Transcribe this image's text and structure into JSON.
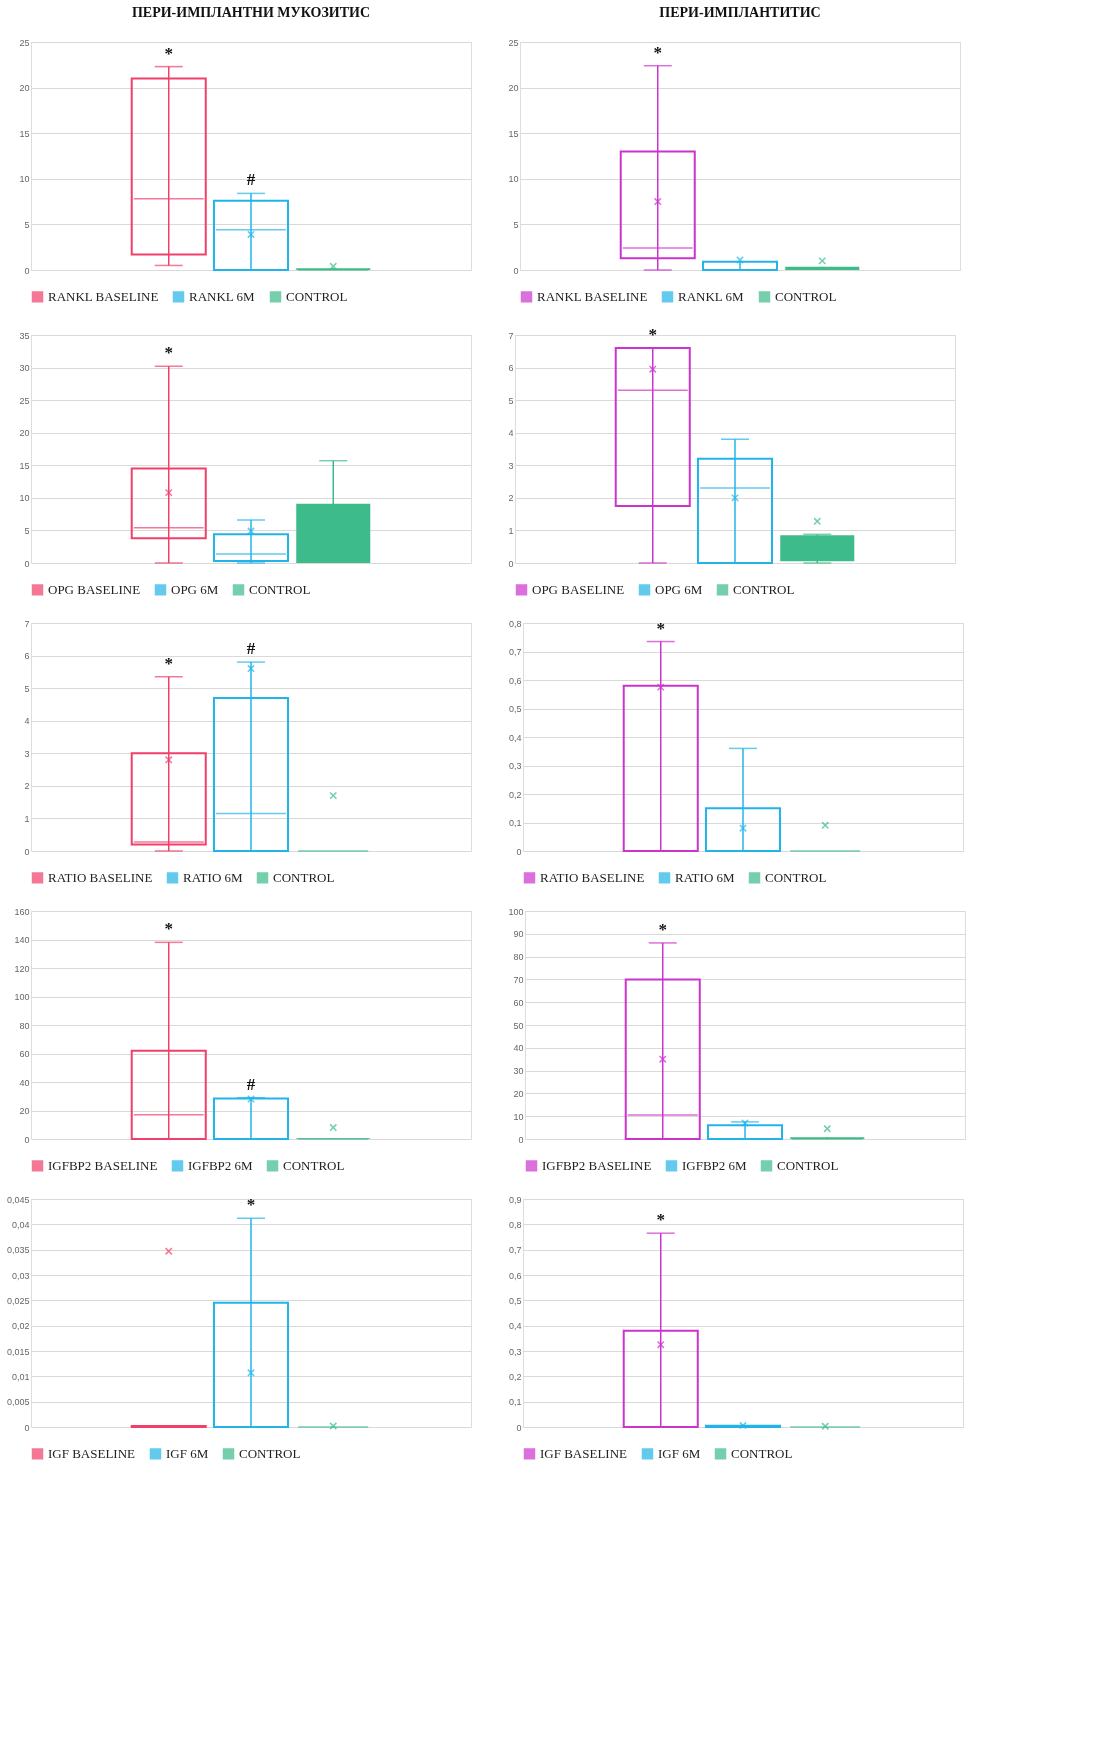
{
  "chart_data": [
    {
      "type": "box",
      "title": "ПЕРИ-ИМПЛАНТНИ МУКОЗИТИС",
      "categories": [
        null
      ],
      "ylim": [
        0,
        25
      ],
      "yticks": [
        0,
        5,
        10,
        15,
        20,
        25
      ],
      "grid": "y",
      "legend": "bottom",
      "marker": "cross",
      "series": [
        {
          "name": "RANKL BASELINE",
          "color": "#f0406a",
          "boxes": [
            {
              "low": 0.5,
              "q1": 1.7,
              "median": 7.8,
              "q3": 21,
              "high": 22.3
            }
          ]
        },
        {
          "name": "RANKL 6M",
          "color": "#22b4e8",
          "boxes": [
            {
              "low": 0,
              "q1": 0,
              "median": 4.4,
              "q3": 7.6,
              "high": 8.4,
              "mean": 3.9
            }
          ]
        },
        {
          "name": "CONTROL",
          "color": "#3dbb8a",
          "boxes": [
            {
              "low": 0,
              "q1": 0,
              "median": 0,
              "q3": 0.2,
              "high": 0.2,
              "mean": 0.4
            }
          ]
        }
      ],
      "annotations": [
        {
          "text": "*",
          "y": 22.3
        },
        {
          "text": "#",
          "y": 8.4
        }
      ]
    },
    {
      "type": "box",
      "title": "ПЕРИ-ИМПЛАНТИТИС",
      "categories": [
        null
      ],
      "ylim": [
        0,
        25
      ],
      "yticks": [
        0,
        5,
        10,
        15,
        20,
        25
      ],
      "grid": "y",
      "legend": "bottom",
      "marker": "cross",
      "series": [
        {
          "name": "RANKL BASELINE",
          "color": "#cc33cc",
          "boxes": [
            {
              "low": 0,
              "q1": 1.3,
              "median": 2.4,
              "q3": 13,
              "high": 22.4,
              "mean": 7.5
            }
          ]
        },
        {
          "name": "RANKL 6M",
          "color": "#22b4e8",
          "boxes": [
            {
              "low": 0,
              "q1": 0,
              "median": 0,
              "q3": 0.9,
              "high": 0.9,
              "mean": 1.1
            }
          ]
        },
        {
          "name": "CONTROL",
          "color": "#3dbb8a",
          "boxes": [
            {
              "low": 0,
              "q1": 0,
              "median": 0.1,
              "q3": 0.35,
              "high": 0.35,
              "mean": 1.0
            }
          ]
        }
      ],
      "annotations": [
        {
          "text": "*",
          "y": 22.4
        }
      ]
    },
    {
      "type": "box",
      "categories": [
        null
      ],
      "ylim": [
        0,
        35
      ],
      "yticks": [
        0,
        5,
        10,
        15,
        20,
        25,
        30,
        35
      ],
      "grid": "y",
      "legend": "bottom",
      "marker": "cross",
      "series": [
        {
          "name": "OPG BASELINE",
          "color": "#f0406a",
          "boxes": [
            {
              "low": 0,
              "q1": 3.8,
              "median": 5.4,
              "q3": 14.5,
              "high": 30.2,
              "mean": 10.8
            }
          ]
        },
        {
          "name": "OPG 6M",
          "color": "#22b4e8",
          "boxes": [
            {
              "low": 0,
              "q1": 0.3,
              "median": 1.4,
              "q3": 4.4,
              "high": 6.6,
              "mean": 4.9
            }
          ]
        },
        {
          "name": "CONTROL",
          "color": "#3dbb8a",
          "boxes": [
            {
              "low": 0,
              "q1": 0,
              "median": 1.4,
              "q3": 9.1,
              "high": 15.7,
              "mean": 5.3
            }
          ]
        }
      ],
      "annotations": [
        {
          "text": "*",
          "y": 30.2
        }
      ]
    },
    {
      "type": "box",
      "categories": [
        null
      ],
      "ylim": [
        0,
        7
      ],
      "yticks": [
        0,
        1,
        2,
        3,
        4,
        5,
        6,
        7
      ],
      "grid": "y",
      "legend": "bottom",
      "marker": "cross",
      "series": [
        {
          "name": "OPG BASELINE",
          "color": "#cc33cc",
          "boxes": [
            {
              "low": 0,
              "q1": 1.75,
              "median": 5.3,
              "q3": 6.6,
              "high": 6.6,
              "mean": 5.95
            }
          ]
        },
        {
          "name": "OPG 6M",
          "color": "#22b4e8",
          "boxes": [
            {
              "low": 0,
              "q1": 0,
              "median": 2.3,
              "q3": 3.2,
              "high": 3.8,
              "mean": 2.0
            }
          ]
        },
        {
          "name": "CONTROL",
          "color": "#3dbb8a",
          "boxes": [
            {
              "low": 0,
              "q1": 0.05,
              "median": 0.45,
              "q3": 0.85,
              "high": 0.88,
              "mean": 1.28
            }
          ]
        }
      ],
      "annotations": [
        {
          "text": "*",
          "y": 6.6
        }
      ]
    },
    {
      "type": "box",
      "categories": [
        null
      ],
      "ylim": [
        0,
        7
      ],
      "yticks": [
        0,
        1,
        2,
        3,
        4,
        5,
        6,
        7
      ],
      "grid": "y",
      "legend": "bottom",
      "marker": "cross",
      "series": [
        {
          "name": "RATIO BASELINE",
          "color": "#f0406a",
          "boxes": [
            {
              "low": 0,
              "q1": 0.2,
              "median": 0.28,
              "q3": 3.0,
              "high": 5.35,
              "mean": 2.8
            }
          ]
        },
        {
          "name": "RATIO 6M",
          "color": "#22b4e8",
          "boxes": [
            {
              "low": 0,
              "q1": 0,
              "median": 1.15,
              "q3": 4.7,
              "high": 5.8,
              "mean": 5.6
            }
          ]
        },
        {
          "name": "CONTROL",
          "color": "#3dbb8a",
          "boxes": [
            {
              "low": 0,
              "q1": 0,
              "median": 0,
              "q3": 0,
              "high": 0,
              "mean": 1.7
            }
          ]
        }
      ],
      "annotations": [
        {
          "text": "*",
          "y": 5.35
        },
        {
          "text": "#",
          "y": 5.8
        }
      ]
    },
    {
      "type": "box",
      "categories": [
        null
      ],
      "ylim": [
        0,
        0.8
      ],
      "yticks": [
        0,
        {
          "value": 0.1,
          "label": "0,1"
        },
        {
          "value": 0.2,
          "label": "0,2"
        },
        {
          "value": 0.3,
          "label": "0,3"
        },
        {
          "value": 0.4,
          "label": "0,4"
        },
        {
          "value": 0.5,
          "label": "0,5"
        },
        {
          "value": 0.6,
          "label": "0,6"
        },
        {
          "value": 0.7,
          "label": "0,7"
        },
        {
          "value": 0.8,
          "label": "0,8"
        }
      ],
      "grid": "y",
      "legend": "bottom",
      "marker": "cross",
      "series": [
        {
          "name": "RATIO BASELINE",
          "color": "#cc33cc",
          "boxes": [
            {
              "low": 0,
              "q1": 0,
              "median": 0,
              "q3": 0.58,
              "high": 0.735,
              "mean": 0.575
            }
          ]
        },
        {
          "name": "RATIO 6M",
          "color": "#22b4e8",
          "boxes": [
            {
              "low": 0,
              "q1": 0,
              "median": 0,
              "q3": 0.15,
              "high": 0.36,
              "mean": 0.08
            }
          ]
        },
        {
          "name": "CONTROL",
          "color": "#3dbb8a",
          "boxes": [
            {
              "low": 0,
              "q1": 0,
              "median": 0,
              "q3": 0,
              "high": 0,
              "mean": 0.09
            }
          ]
        }
      ],
      "annotations": [
        {
          "text": "*",
          "y": 0.735
        }
      ]
    },
    {
      "type": "box",
      "categories": [
        null
      ],
      "ylim": [
        0,
        160
      ],
      "yticks": [
        0,
        20,
        40,
        60,
        80,
        100,
        120,
        140,
        160
      ],
      "grid": "y",
      "legend": "bottom",
      "marker": "cross",
      "series": [
        {
          "name": "IGFBP2 BASELINE",
          "color": "#f0406a",
          "boxes": [
            {
              "low": 0,
              "q1": 0,
              "median": 17,
              "q3": 62,
              "high": 138
            }
          ]
        },
        {
          "name": "IGFBP2 6M",
          "color": "#22b4e8",
          "boxes": [
            {
              "low": 0,
              "q1": 0,
              "median": 0,
              "q3": 28.5,
              "high": 29,
              "mean": 28
            }
          ]
        },
        {
          "name": "CONTROL",
          "color": "#3dbb8a",
          "boxes": [
            {
              "low": 0,
              "q1": 0,
              "median": 0,
              "q3": 0.5,
              "high": 0.5,
              "mean": 8
            }
          ]
        }
      ],
      "annotations": [
        {
          "text": "*",
          "y": 138
        },
        {
          "text": "#",
          "y": 29
        }
      ]
    },
    {
      "type": "box",
      "categories": [
        null
      ],
      "ylim": [
        0,
        100
      ],
      "yticks": [
        0,
        10,
        20,
        30,
        40,
        50,
        60,
        70,
        80,
        90,
        100
      ],
      "grid": "y",
      "legend": "bottom",
      "marker": "cross",
      "series": [
        {
          "name": "IGFBP2 BASELINE",
          "color": "#cc33cc",
          "boxes": [
            {
              "low": 0,
              "q1": 0,
              "median": 10.5,
              "q3": 70,
              "high": 86,
              "mean": 35
            }
          ]
        },
        {
          "name": "IGFBP2 6M",
          "color": "#22b4e8",
          "boxes": [
            {
              "low": 0,
              "q1": 0,
              "median": 0,
              "q3": 6,
              "high": 7.5,
              "mean": 7
            }
          ]
        },
        {
          "name": "CONTROL",
          "color": "#3dbb8a",
          "boxes": [
            {
              "low": 0,
              "q1": 0,
              "median": 0,
              "q3": 0.8,
              "high": 0.8,
              "mean": 4.5
            }
          ]
        }
      ],
      "annotations": [
        {
          "text": "*",
          "y": 86
        }
      ]
    },
    {
      "type": "box",
      "categories": [
        null
      ],
      "ylim": [
        0,
        0.045
      ],
      "yticks": [
        0,
        {
          "value": 0.005,
          "label": "0,005"
        },
        {
          "value": 0.01,
          "label": "0,01"
        },
        {
          "value": 0.015,
          "label": "0,015"
        },
        {
          "value": 0.02,
          "label": "0,02"
        },
        {
          "value": 0.025,
          "label": "0,025"
        },
        {
          "value": 0.03,
          "label": "0,03"
        },
        {
          "value": 0.035,
          "label": "0,035"
        },
        {
          "value": 0.04,
          "label": "0,04"
        },
        {
          "value": 0.045,
          "label": "0,045"
        }
      ],
      "grid": "y",
      "legend": "bottom",
      "marker": "cross",
      "series": [
        {
          "name": "IGF BASELINE",
          "color": "#f0406a",
          "boxes": [
            {
              "low": 0,
              "q1": 0,
              "median": 0,
              "q3": 0.0002,
              "high": 0.0002,
              "mean": 0.0347
            }
          ]
        },
        {
          "name": "IGF 6M",
          "color": "#22b4e8",
          "boxes": [
            {
              "low": 0,
              "q1": 0,
              "median": 0,
              "q3": 0.0245,
              "high": 0.0412,
              "mean": 0.0107
            }
          ]
        },
        {
          "name": "CONTROL",
          "color": "#3dbb8a",
          "boxes": [
            {
              "low": 0,
              "q1": 0,
              "median": 0,
              "q3": 0,
              "high": 0,
              "mean": 0.0002
            }
          ]
        }
      ],
      "annotations": [
        {
          "text": "*",
          "y": 0.0412
        }
      ]
    },
    {
      "type": "box",
      "categories": [
        null
      ],
      "ylim": [
        0,
        0.9
      ],
      "yticks": [
        0,
        {
          "value": 0.1,
          "label": "0,1"
        },
        {
          "value": 0.2,
          "label": "0,2"
        },
        {
          "value": 0.3,
          "label": "0,3"
        },
        {
          "value": 0.4,
          "label": "0,4"
        },
        {
          "value": 0.5,
          "label": "0,5"
        },
        {
          "value": 0.6,
          "label": "0,6"
        },
        {
          "value": 0.7,
          "label": "0,7"
        },
        {
          "value": 0.8,
          "label": "0,8"
        },
        {
          "value": 0.9,
          "label": "0,9"
        }
      ],
      "grid": "y",
      "legend": "bottom",
      "marker": "cross",
      "series": [
        {
          "name": "IGF BASELINE",
          "color": "#cc33cc",
          "boxes": [
            {
              "low": 0,
              "q1": 0,
              "median": 0,
              "q3": 0.38,
              "high": 0.765,
              "mean": 0.325
            }
          ]
        },
        {
          "name": "IGF 6M",
          "color": "#22b4e8",
          "boxes": [
            {
              "low": 0,
              "q1": 0,
              "median": 0,
              "q3": 0.005,
              "high": 0.005,
              "mean": 0.006
            }
          ]
        },
        {
          "name": "CONTROL",
          "color": "#3dbb8a",
          "boxes": [
            {
              "low": 0,
              "q1": 0,
              "median": 0,
              "q3": 0,
              "high": 0,
              "mean": 0.003
            }
          ]
        }
      ],
      "annotations": [
        {
          "text": "*",
          "y": 0.765
        }
      ]
    }
  ]
}
